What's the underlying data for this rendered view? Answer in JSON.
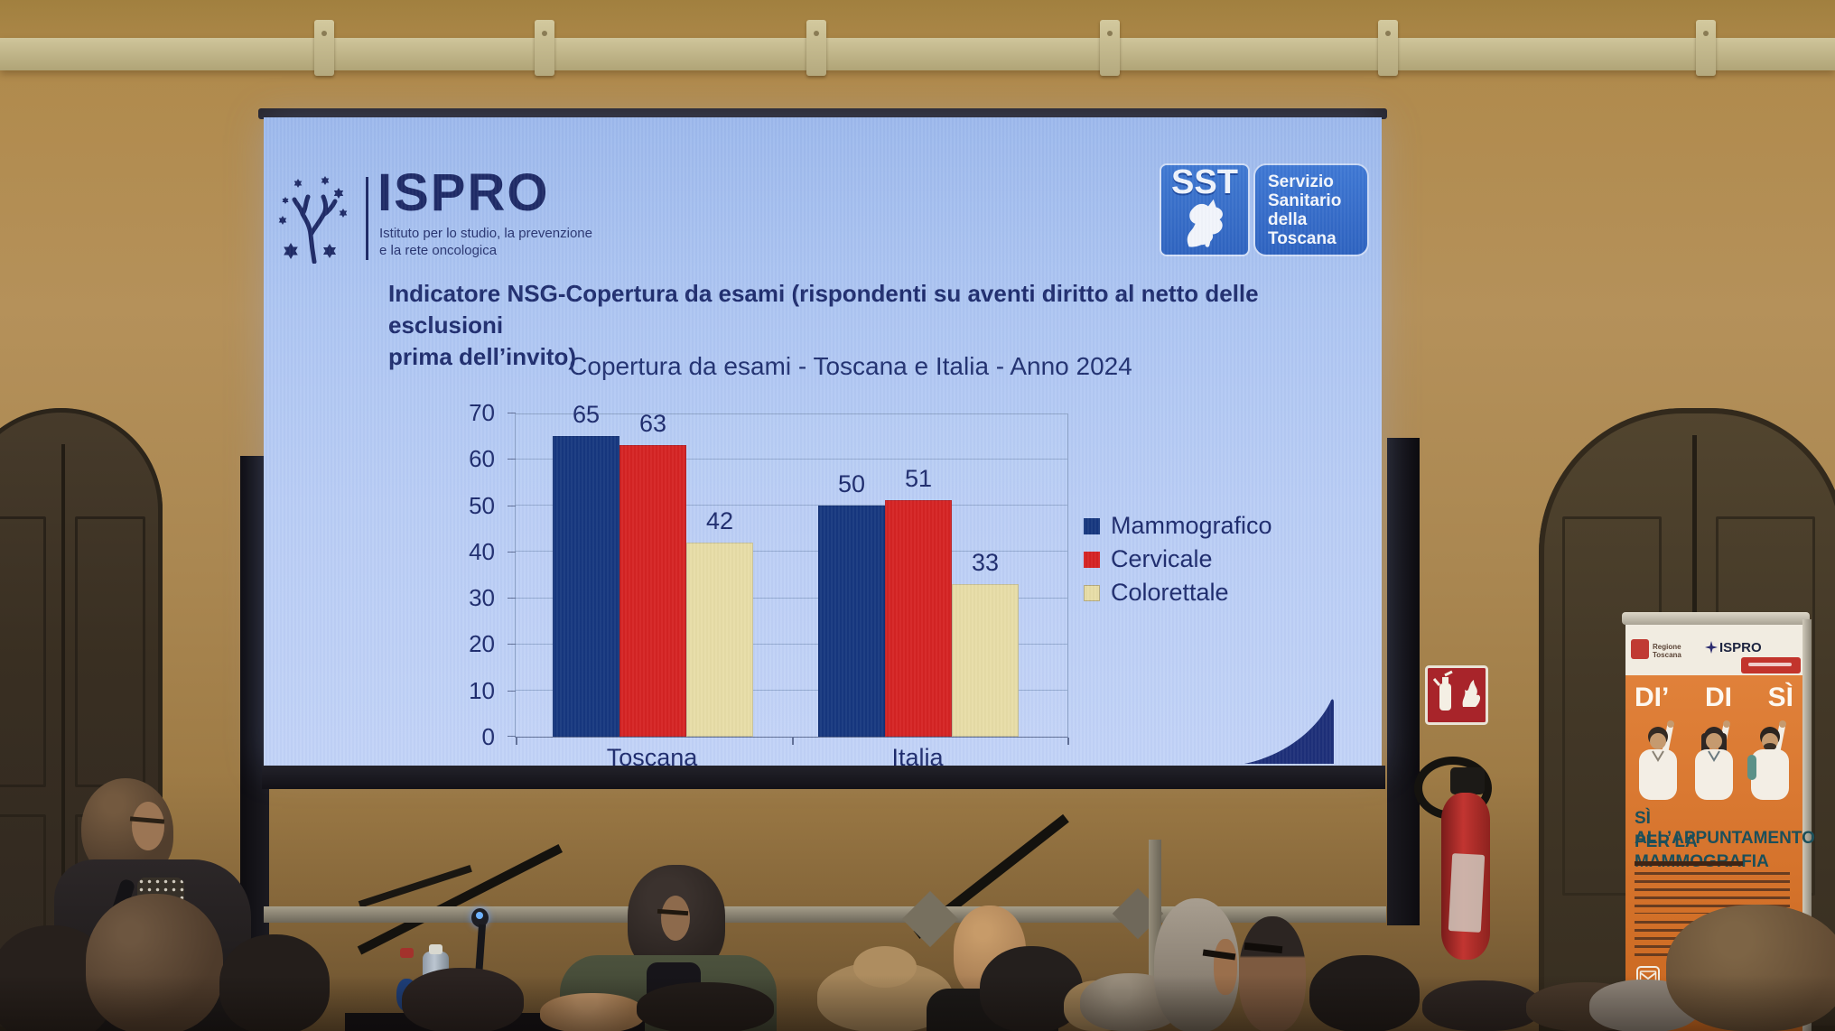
{
  "slide": {
    "ispro": {
      "name": "ISPRO",
      "tagline1": "Istituto per lo studio, la prevenzione",
      "tagline2": "e la rete oncologica"
    },
    "sst": {
      "acronym": "SST",
      "line1": "Servizio",
      "line2": "Sanitario",
      "line3": "della",
      "line4": "Toscana"
    },
    "title_line1": "Indicatore NSG-Copertura da esami (rispondenti su aventi diritto al netto delle esclusioni",
    "title_line2": "prima dell’invito)"
  },
  "chart_data": {
    "type": "bar",
    "title": "Copertura da esami - Toscana e Italia - Anno 2024",
    "categories": [
      "Toscana",
      "Italia"
    ],
    "series": [
      {
        "name": "Mammografico",
        "color": "#16377e",
        "values": [
          65,
          50
        ]
      },
      {
        "name": "Cervicale",
        "color": "#d52322",
        "values": [
          63,
          51
        ]
      },
      {
        "name": "Colorettale",
        "color": "#e7dda6",
        "values": [
          42,
          33
        ]
      }
    ],
    "ylim": [
      0,
      70
    ],
    "yticks": [
      0,
      10,
      20,
      30,
      40,
      50,
      60,
      70
    ],
    "grid": true,
    "legend_position": "right",
    "value_labels": true
  },
  "poster": {
    "logo_left": "Regione Toscana",
    "logo_center": "ISPRO",
    "headline": [
      "DI’",
      "DI",
      "SÌ"
    ],
    "subline1": "SÌ ALL’APPUNTAMENTO",
    "subline2": "PER LA MAMMOGRAFIA"
  }
}
